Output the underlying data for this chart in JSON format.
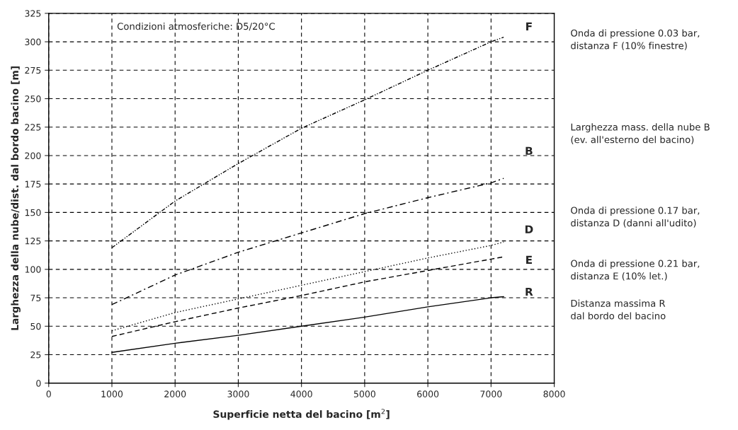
{
  "chart_data": {
    "type": "line",
    "xlabel": "Superficie netta del bacino [m$^{2}$]",
    "ylabel": "Larghezza della nube/dist. dal bordo bacino [m]",
    "x": [
      1000,
      2000,
      3000,
      4000,
      5000,
      6000,
      7000,
      7200
    ],
    "series": [
      {
        "name": "F",
        "color": "#000000",
        "line_style": "dashdotdot",
        "values": [
          119,
          160,
          193,
          224,
          249,
          275,
          300,
          304
        ]
      },
      {
        "name": "B",
        "color": "#000000",
        "line_style": "dashdot",
        "values": [
          69,
          95,
          115,
          132,
          149,
          163,
          176,
          180
        ]
      },
      {
        "name": "D",
        "color": "#000000",
        "line_style": "dotted",
        "values": [
          46,
          62,
          74,
          86,
          98,
          110,
          121,
          124
        ]
      },
      {
        "name": "E",
        "color": "#000000",
        "line_style": "dashed",
        "values": [
          41,
          54,
          66,
          77,
          89,
          99,
          109,
          111
        ]
      },
      {
        "name": "R",
        "color": "#000000",
        "line_style": "solid",
        "values": [
          27,
          35,
          42,
          50,
          58,
          67,
          75,
          76
        ]
      }
    ],
    "xlim": [
      0,
      8000
    ],
    "xticks": [
      0,
      1000,
      2000,
      3000,
      4000,
      5000,
      6000,
      7000,
      8000
    ],
    "ylim": [
      0,
      325
    ],
    "yticks": [
      0,
      25,
      50,
      75,
      100,
      125,
      150,
      175,
      200,
      225,
      250,
      275,
      300,
      325
    ],
    "grid": true,
    "legend": false,
    "annotations": [
      "Condizioni atmosferiche: D5/20°C",
      "Onda di pressione 0.03 bar,\ndistanza F (10% finestre)",
      "Larghezza mass. della nube B\n(ev. all'esterno del bacino)",
      "Onda di pressione 0.17 bar,\ndistanza D (danni all'udito)",
      "Onda di pressione 0.21 bar,\ndistanza E (10% let.)",
      "Distanza massima R\ndal bordo del bacino"
    ]
  }
}
